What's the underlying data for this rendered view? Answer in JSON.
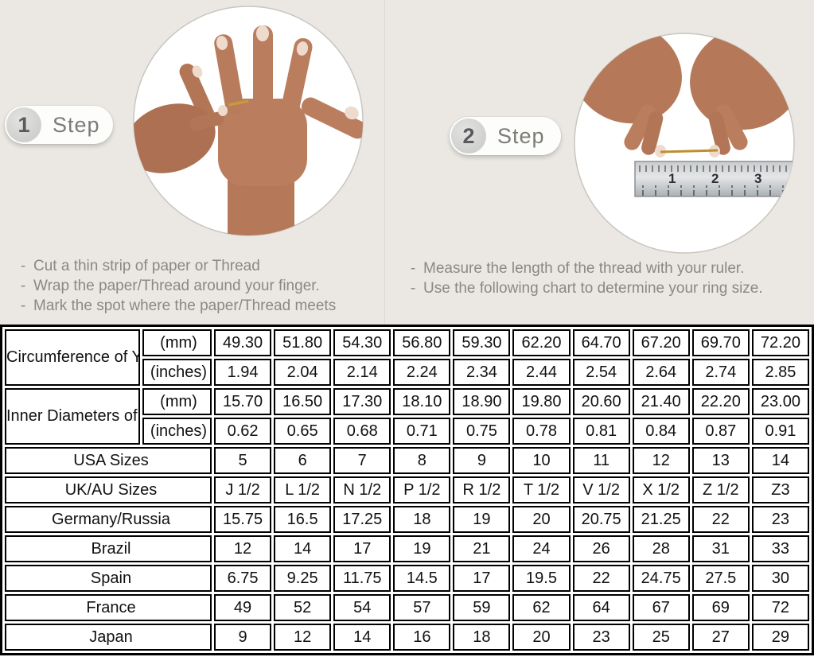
{
  "colors": {
    "background": "#ebe8e3",
    "table_shaded_cell": "#d9d9d9",
    "table_border": "#000000",
    "step_text": "#7c7b77",
    "instruction_text": "#8a8984",
    "thread_gold": "#bf8f2e"
  },
  "instruction_bullet": "-",
  "steps": [
    {
      "number": "1",
      "label": "Step",
      "instructions": [
        "Cut a thin strip of paper or Thread",
        "Wrap the paper/Thread around your finger.",
        "Mark the spot where the paper/Thread meets"
      ]
    },
    {
      "number": "2",
      "label": "Step",
      "instructions": [
        "Measure the length of the thread with your ruler.",
        "Use the following chart to determine your ring size."
      ]
    }
  ],
  "photos": {
    "step1": {
      "name": "hand-with-thread-photo"
    },
    "step2": {
      "name": "measuring-thread-with-ruler-photo",
      "ruler_numbers": [
        "1",
        "2",
        "3"
      ]
    }
  },
  "size_chart": {
    "measure_groups": [
      {
        "label": "Circumference of Your Finger",
        "rows": [
          {
            "unit": "(mm)",
            "shaded": true,
            "values": [
              "49.30",
              "51.80",
              "54.30",
              "56.80",
              "59.30",
              "62.20",
              "64.70",
              "67.20",
              "69.70",
              "72.20"
            ]
          },
          {
            "unit": "(inches)",
            "shaded": false,
            "values": [
              "1.94",
              "2.04",
              "2.14",
              "2.24",
              "2.34",
              "2.44",
              "2.54",
              "2.64",
              "2.74",
              "2.85"
            ]
          }
        ]
      },
      {
        "label": "Inner Diameters of Rings",
        "rows": [
          {
            "unit": "(mm)",
            "shaded": false,
            "values": [
              "15.70",
              "16.50",
              "17.30",
              "18.10",
              "18.90",
              "19.80",
              "20.60",
              "21.40",
              "22.20",
              "23.00"
            ]
          },
          {
            "unit": "(inches)",
            "shaded": false,
            "values": [
              "0.62",
              "0.65",
              "0.68",
              "0.71",
              "0.75",
              "0.78",
              "0.81",
              "0.84",
              "0.87",
              "0.91"
            ]
          }
        ]
      }
    ],
    "size_rows": [
      {
        "label": "USA Sizes",
        "shaded": true,
        "values": [
          "5",
          "6",
          "7",
          "8",
          "9",
          "10",
          "11",
          "12",
          "13",
          "14"
        ]
      },
      {
        "label": "UK/AU Sizes",
        "shaded": false,
        "values": [
          "J 1/2",
          "L 1/2",
          "N 1/2",
          "P 1/2",
          "R 1/2",
          "T 1/2",
          "V 1/2",
          "X 1/2",
          "Z 1/2",
          "Z3"
        ]
      },
      {
        "label": "Germany/Russia",
        "shaded": false,
        "values": [
          "15.75",
          "16.5",
          "17.25",
          "18",
          "19",
          "20",
          "20.75",
          "21.25",
          "22",
          "23"
        ]
      },
      {
        "label": "Brazil",
        "shaded": false,
        "values": [
          "12",
          "14",
          "17",
          "19",
          "21",
          "24",
          "26",
          "28",
          "31",
          "33"
        ]
      },
      {
        "label": "Spain",
        "shaded": false,
        "values": [
          "6.75",
          "9.25",
          "11.75",
          "14.5",
          "17",
          "19.5",
          "22",
          "24.75",
          "27.5",
          "30"
        ]
      },
      {
        "label": "France",
        "shaded": false,
        "values": [
          "49",
          "52",
          "54",
          "57",
          "59",
          "62",
          "64",
          "67",
          "69",
          "72"
        ]
      },
      {
        "label": "Japan",
        "shaded": false,
        "values": [
          "9",
          "12",
          "14",
          "16",
          "18",
          "20",
          "23",
          "25",
          "27",
          "29"
        ]
      }
    ]
  }
}
